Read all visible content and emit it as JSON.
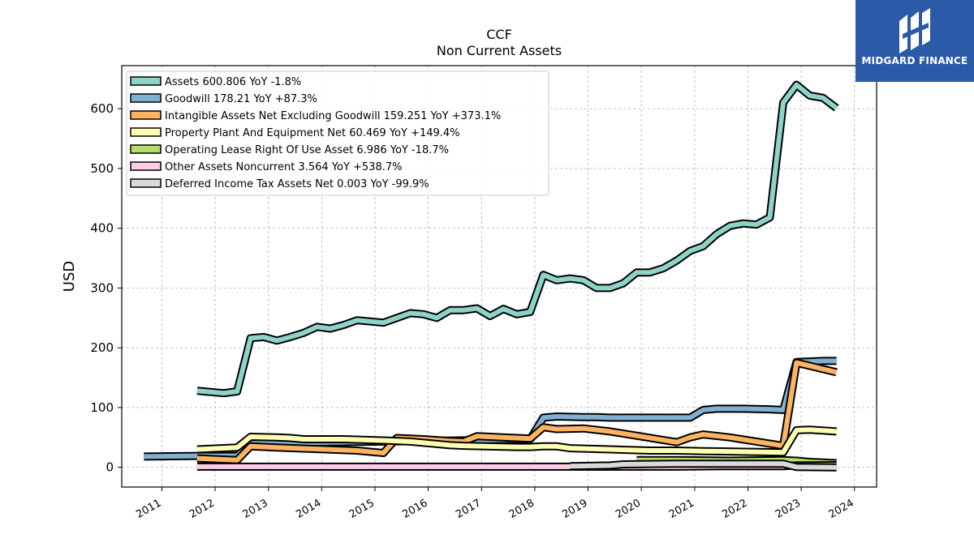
{
  "brand": {
    "name": "MIDGARD FINANCE",
    "logo_icon": "midgard-logo-icon",
    "background": "#2a5aa8"
  },
  "chart_data": {
    "type": "line",
    "title": "CCF",
    "subtitle": "Non Current  Assets",
    "ylabel": "USD",
    "xlabel": "",
    "x_range": [
      "2010-04-01",
      "2024-06-01"
    ],
    "ylim": [
      -33,
      672
    ],
    "y_ticks": [
      0,
      100,
      200,
      300,
      400,
      500,
      600
    ],
    "x_ticks": [
      "2011",
      "2012",
      "2013",
      "2014",
      "2015",
      "2016",
      "2017",
      "2018",
      "2019",
      "2020",
      "2021",
      "2022",
      "2023",
      "2024"
    ],
    "grid": true,
    "legend_position": "top-left",
    "series": [
      {
        "name": "Assets",
        "legend": "Assets  600.806 YoY -1.8%",
        "color": "#8dd3c7",
        "points": [
          [
            "2011-08-31",
            128
          ],
          [
            "2011-11-30",
            126
          ],
          [
            "2012-02-29",
            124
          ],
          [
            "2012-05-31",
            127
          ],
          [
            "2012-08-31",
            216
          ],
          [
            "2012-11-30",
            218
          ],
          [
            "2013-02-28",
            212
          ],
          [
            "2013-05-31",
            218
          ],
          [
            "2013-08-31",
            225
          ],
          [
            "2013-11-30",
            235
          ],
          [
            "2014-02-28",
            232
          ],
          [
            "2014-05-31",
            238
          ],
          [
            "2014-08-31",
            246
          ],
          [
            "2014-11-30",
            244
          ],
          [
            "2015-02-28",
            242
          ],
          [
            "2015-05-31",
            250
          ],
          [
            "2015-08-31",
            258
          ],
          [
            "2015-11-30",
            256
          ],
          [
            "2016-02-29",
            250
          ],
          [
            "2016-05-31",
            263
          ],
          [
            "2016-08-31",
            263
          ],
          [
            "2016-11-30",
            266
          ],
          [
            "2017-02-28",
            253
          ],
          [
            "2017-05-31",
            265
          ],
          [
            "2017-08-31",
            256
          ],
          [
            "2017-11-30",
            260
          ],
          [
            "2018-02-28",
            322
          ],
          [
            "2018-05-31",
            313
          ],
          [
            "2018-08-31",
            316
          ],
          [
            "2018-11-30",
            313
          ],
          [
            "2019-02-28",
            300
          ],
          [
            "2019-05-31",
            300
          ],
          [
            "2019-08-31",
            308
          ],
          [
            "2019-11-30",
            326
          ],
          [
            "2020-02-29",
            326
          ],
          [
            "2020-05-31",
            333
          ],
          [
            "2020-08-31",
            346
          ],
          [
            "2020-11-30",
            362
          ],
          [
            "2021-02-28",
            370
          ],
          [
            "2021-05-31",
            390
          ],
          [
            "2021-08-31",
            404
          ],
          [
            "2021-11-30",
            408
          ],
          [
            "2022-02-28",
            406
          ],
          [
            "2022-05-31",
            418
          ],
          [
            "2022-08-31",
            610
          ],
          [
            "2022-11-30",
            640
          ],
          [
            "2023-02-28",
            622
          ],
          [
            "2023-05-31",
            618
          ],
          [
            "2023-08-31",
            601
          ]
        ]
      },
      {
        "name": "Goodwill",
        "legend": "Goodwill  178.21 YoY +87.3%",
        "color": "#80b1d3",
        "points": [
          [
            "2010-08-31",
            18
          ],
          [
            "2011-08-31",
            19
          ],
          [
            "2012-05-31",
            19
          ],
          [
            "2012-08-31",
            40
          ],
          [
            "2015-11-30",
            44
          ],
          [
            "2017-11-30",
            47
          ],
          [
            "2018-02-28",
            83
          ],
          [
            "2018-05-31",
            85
          ],
          [
            "2018-11-30",
            84
          ],
          [
            "2019-02-28",
            84
          ],
          [
            "2019-05-31",
            83
          ],
          [
            "2019-08-31",
            83
          ],
          [
            "2020-08-31",
            83
          ],
          [
            "2020-11-30",
            83
          ],
          [
            "2021-02-28",
            96
          ],
          [
            "2021-05-31",
            98
          ],
          [
            "2021-11-30",
            98
          ],
          [
            "2022-05-31",
            97
          ],
          [
            "2022-08-31",
            96
          ],
          [
            "2022-11-30",
            176
          ],
          [
            "2023-02-28",
            177
          ],
          [
            "2023-05-31",
            178
          ],
          [
            "2023-08-31",
            178
          ]
        ]
      },
      {
        "name": "Intangible Assets Net Excluding Goodwill",
        "legend": "Intangible Assets Net Excluding Goodwill  159.251 YoY +373.1%",
        "color": "#fdb462",
        "points": [
          [
            "2011-08-31",
            15
          ],
          [
            "2012-05-31",
            12
          ],
          [
            "2012-08-31",
            35
          ],
          [
            "2013-02-28",
            33
          ],
          [
            "2014-08-31",
            28
          ],
          [
            "2015-02-28",
            24
          ],
          [
            "2015-05-31",
            49
          ],
          [
            "2015-11-30",
            47
          ],
          [
            "2016-05-31",
            44
          ],
          [
            "2016-08-31",
            43
          ],
          [
            "2016-11-30",
            52
          ],
          [
            "2017-08-31",
            49
          ],
          [
            "2017-11-30",
            48
          ],
          [
            "2018-02-28",
            67
          ],
          [
            "2018-05-31",
            64
          ],
          [
            "2018-11-30",
            65
          ],
          [
            "2019-05-31",
            60
          ],
          [
            "2020-08-31",
            42
          ],
          [
            "2020-11-30",
            50
          ],
          [
            "2021-02-28",
            55
          ],
          [
            "2021-08-31",
            50
          ],
          [
            "2022-08-31",
            36
          ],
          [
            "2022-11-30",
            175
          ],
          [
            "2023-08-31",
            159
          ]
        ]
      },
      {
        "name": "Property Plant And Equipment Net",
        "legend": "Property Plant And Equipment Net  60.469 YoY +149.4%",
        "color": "#ffffb3",
        "points": [
          [
            "2011-08-31",
            30
          ],
          [
            "2012-05-31",
            33
          ],
          [
            "2012-08-31",
            51
          ],
          [
            "2013-02-28",
            50
          ],
          [
            "2013-05-31",
            49
          ],
          [
            "2013-08-31",
            47
          ],
          [
            "2014-02-28",
            47
          ],
          [
            "2014-05-31",
            47
          ],
          [
            "2015-02-28",
            45
          ],
          [
            "2015-08-31",
            43
          ],
          [
            "2016-05-31",
            37
          ],
          [
            "2016-08-31",
            36
          ],
          [
            "2017-08-31",
            34
          ],
          [
            "2017-11-30",
            34
          ],
          [
            "2018-02-28",
            35
          ],
          [
            "2018-05-31",
            35
          ],
          [
            "2018-08-31",
            32
          ],
          [
            "2019-05-31",
            30
          ],
          [
            "2020-02-29",
            28
          ],
          [
            "2020-08-31",
            28
          ],
          [
            "2021-02-28",
            27
          ],
          [
            "2022-08-31",
            25
          ],
          [
            "2022-11-30",
            62
          ],
          [
            "2023-02-28",
            63
          ],
          [
            "2023-08-31",
            60
          ]
        ]
      },
      {
        "name": "Operating Lease Right Of Use Asset",
        "legend": "Operating Lease Right Of Use Asset  6.986 YoY -18.7%",
        "color": "#b3de69",
        "points": [
          [
            "2019-11-30",
            12
          ],
          [
            "2020-08-31",
            12
          ],
          [
            "2021-08-31",
            11
          ],
          [
            "2022-08-31",
            12
          ],
          [
            "2022-11-30",
            11
          ],
          [
            "2023-02-28",
            9
          ],
          [
            "2023-05-31",
            8
          ],
          [
            "2023-08-31",
            7
          ]
        ]
      },
      {
        "name": "Other Assets Noncurrent",
        "legend": "Other Assets Noncurrent  3.564 YoY +538.7%",
        "color": "#fccde5",
        "points": [
          [
            "2011-08-31",
            1
          ],
          [
            "2018-05-31",
            1
          ],
          [
            "2019-05-31",
            1
          ],
          [
            "2020-08-31",
            1
          ],
          [
            "2021-08-31",
            2
          ],
          [
            "2022-08-31",
            2
          ],
          [
            "2022-11-30",
            3
          ],
          [
            "2023-08-31",
            3.6
          ]
        ]
      },
      {
        "name": "Deferred Income Tax Assets Net",
        "legend": "Deferred Income Tax Assets Net  0.003 YoY -99.9%",
        "color": "#d9d9d9",
        "points": [
          [
            "2018-08-31",
            2
          ],
          [
            "2019-05-31",
            3
          ],
          [
            "2019-08-31",
            5
          ],
          [
            "2020-08-31",
            6
          ],
          [
            "2021-08-31",
            6
          ],
          [
            "2022-08-31",
            6
          ],
          [
            "2022-11-30",
            0.5
          ],
          [
            "2023-08-31",
            0.003
          ]
        ]
      }
    ]
  }
}
